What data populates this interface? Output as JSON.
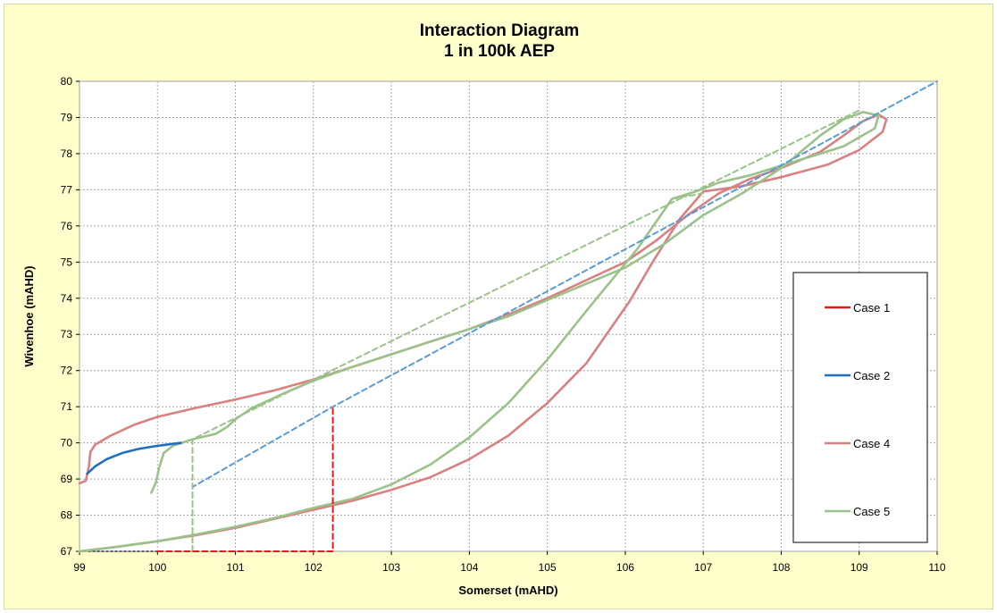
{
  "chart_data": {
    "type": "line",
    "title": "Interaction Diagram",
    "subtitle": "1 in 100k AEP",
    "xlabel": "Somerset (mAHD)",
    "ylabel": "Wivenhoe (mAHD)",
    "xlim": [
      99,
      110
    ],
    "ylim": [
      67,
      80
    ],
    "x_ticks": [
      "99",
      "100",
      "101",
      "102",
      "103",
      "104",
      "105",
      "106",
      "107",
      "108",
      "109",
      "110"
    ],
    "y_ticks": [
      "67",
      "68",
      "69",
      "70",
      "71",
      "72",
      "73",
      "74",
      "75",
      "76",
      "77",
      "78",
      "79",
      "80"
    ],
    "grid": true,
    "legend_position": "right",
    "series": [
      {
        "name": "Case 1",
        "color": "#e31a1c",
        "style": "dashed",
        "points": [
          [
            100.0,
            67.0
          ],
          [
            102.25,
            67.0
          ],
          [
            102.25,
            71.0
          ]
        ]
      },
      {
        "name": "Case 2",
        "color": "#1f6fc0",
        "style": "solid",
        "points": [
          [
            99.1,
            69.15
          ],
          [
            99.2,
            69.35
          ],
          [
            99.35,
            69.55
          ],
          [
            99.55,
            69.72
          ],
          [
            99.75,
            69.83
          ],
          [
            100.0,
            69.92
          ],
          [
            100.3,
            70.0
          ]
        ]
      },
      {
        "name": "Case 2 (lines)",
        "color": "#5b9bd5",
        "style": "dashed",
        "points": [
          [
            100.45,
            67.0
          ],
          [
            100.45,
            68.78
          ],
          [
            102.25,
            71.0
          ],
          [
            110.0,
            80.0
          ]
        ]
      },
      {
        "name": "Case 4",
        "color": "#d98080",
        "style": "solid",
        "points": [
          [
            99.0,
            68.88
          ],
          [
            99.08,
            68.95
          ],
          [
            99.12,
            69.35
          ],
          [
            99.14,
            69.75
          ],
          [
            99.2,
            69.95
          ],
          [
            99.4,
            70.2
          ],
          [
            99.7,
            70.5
          ],
          [
            100.0,
            70.72
          ],
          [
            100.5,
            70.97
          ],
          [
            101.0,
            71.2
          ],
          [
            101.5,
            71.45
          ],
          [
            102.0,
            71.75
          ],
          [
            102.5,
            72.1
          ],
          [
            103.0,
            72.45
          ],
          [
            103.5,
            72.8
          ],
          [
            104.0,
            73.15
          ],
          [
            104.5,
            73.55
          ],
          [
            105.0,
            74.0
          ],
          [
            105.5,
            74.5
          ],
          [
            106.0,
            75.0
          ],
          [
            106.4,
            75.6
          ],
          [
            106.8,
            76.3
          ],
          [
            107.2,
            76.9
          ],
          [
            107.6,
            77.3
          ],
          [
            108.0,
            77.6
          ],
          [
            108.5,
            78.05
          ],
          [
            108.8,
            78.5
          ],
          [
            109.05,
            78.9
          ],
          [
            109.25,
            79.08
          ],
          [
            109.35,
            78.95
          ],
          [
            109.3,
            78.6
          ],
          [
            109.0,
            78.1
          ],
          [
            108.6,
            77.7
          ],
          [
            108.0,
            77.35
          ],
          [
            107.5,
            77.1
          ],
          [
            107.0,
            76.95
          ],
          [
            106.7,
            76.2
          ],
          [
            106.35,
            75.0
          ],
          [
            106.05,
            73.9
          ],
          [
            105.5,
            72.2
          ],
          [
            105.0,
            71.1
          ],
          [
            104.5,
            70.2
          ],
          [
            104.0,
            69.55
          ],
          [
            103.5,
            69.05
          ],
          [
            103.0,
            68.7
          ],
          [
            102.5,
            68.4
          ],
          [
            102.0,
            68.15
          ],
          [
            101.5,
            67.9
          ],
          [
            101.0,
            67.65
          ],
          [
            100.5,
            67.45
          ],
          [
            100.0,
            67.28
          ],
          [
            99.5,
            67.13
          ],
          [
            99.0,
            67.0
          ]
        ]
      },
      {
        "name": "Case 5",
        "color": "#9ac28a",
        "style": "solid",
        "points": [
          [
            99.92,
            68.62
          ],
          [
            99.98,
            68.9
          ],
          [
            100.02,
            69.3
          ],
          [
            100.08,
            69.72
          ],
          [
            100.2,
            69.92
          ],
          [
            100.45,
            70.1
          ],
          [
            100.75,
            70.25
          ],
          [
            100.9,
            70.45
          ],
          [
            101.0,
            70.65
          ],
          [
            101.2,
            70.95
          ],
          [
            101.6,
            71.35
          ],
          [
            102.0,
            71.72
          ],
          [
            102.5,
            72.1
          ],
          [
            103.0,
            72.45
          ],
          [
            103.5,
            72.8
          ],
          [
            104.0,
            73.15
          ],
          [
            104.5,
            73.5
          ],
          [
            105.0,
            73.95
          ],
          [
            105.5,
            74.4
          ],
          [
            106.0,
            74.85
          ],
          [
            106.5,
            75.5
          ],
          [
            107.0,
            76.3
          ],
          [
            107.5,
            76.9
          ],
          [
            108.0,
            77.6
          ],
          [
            108.5,
            78.5
          ],
          [
            108.8,
            78.95
          ],
          [
            109.05,
            79.15
          ],
          [
            109.25,
            79.05
          ],
          [
            109.2,
            78.7
          ],
          [
            108.8,
            78.2
          ],
          [
            108.2,
            77.8
          ],
          [
            107.6,
            77.4
          ],
          [
            107.2,
            77.2
          ],
          [
            106.9,
            76.95
          ],
          [
            106.6,
            76.75
          ],
          [
            106.15,
            75.35
          ],
          [
            105.5,
            73.65
          ],
          [
            105.0,
            72.3
          ],
          [
            104.5,
            71.1
          ],
          [
            104.0,
            70.15
          ],
          [
            103.5,
            69.4
          ],
          [
            103.0,
            68.85
          ],
          [
            102.5,
            68.45
          ],
          [
            102.0,
            68.2
          ],
          [
            101.5,
            67.92
          ],
          [
            101.0,
            67.68
          ],
          [
            100.5,
            67.47
          ],
          [
            100.0,
            67.28
          ],
          [
            99.5,
            67.13
          ],
          [
            99.0,
            67.0
          ]
        ]
      },
      {
        "name": "Case 5 (lines)",
        "color": "#9ac28a",
        "style": "dashed",
        "points": [
          [
            100.45,
            67.0
          ],
          [
            100.45,
            70.1
          ],
          [
            102.0,
            71.75
          ],
          [
            109.0,
            79.2
          ]
        ]
      },
      {
        "name": "Case 5 (lines) b",
        "color": "#9ac28a",
        "style": "dashed",
        "points": [
          [
            106.6,
            76.75
          ],
          [
            107.0,
            76.9
          ]
        ]
      },
      {
        "name": "Baseline",
        "color": "#333333",
        "style": "dotted",
        "points": [
          [
            99.0,
            67.0
          ],
          [
            100.0,
            67.0
          ]
        ]
      }
    ],
    "legend": [
      {
        "label": "Case 1",
        "color": "#e31a1c"
      },
      {
        "label": "Case 2",
        "color": "#1f6fc0"
      },
      {
        "label": "Case 4",
        "color": "#d98080"
      },
      {
        "label": "Case 5",
        "color": "#9ac28a"
      }
    ]
  }
}
